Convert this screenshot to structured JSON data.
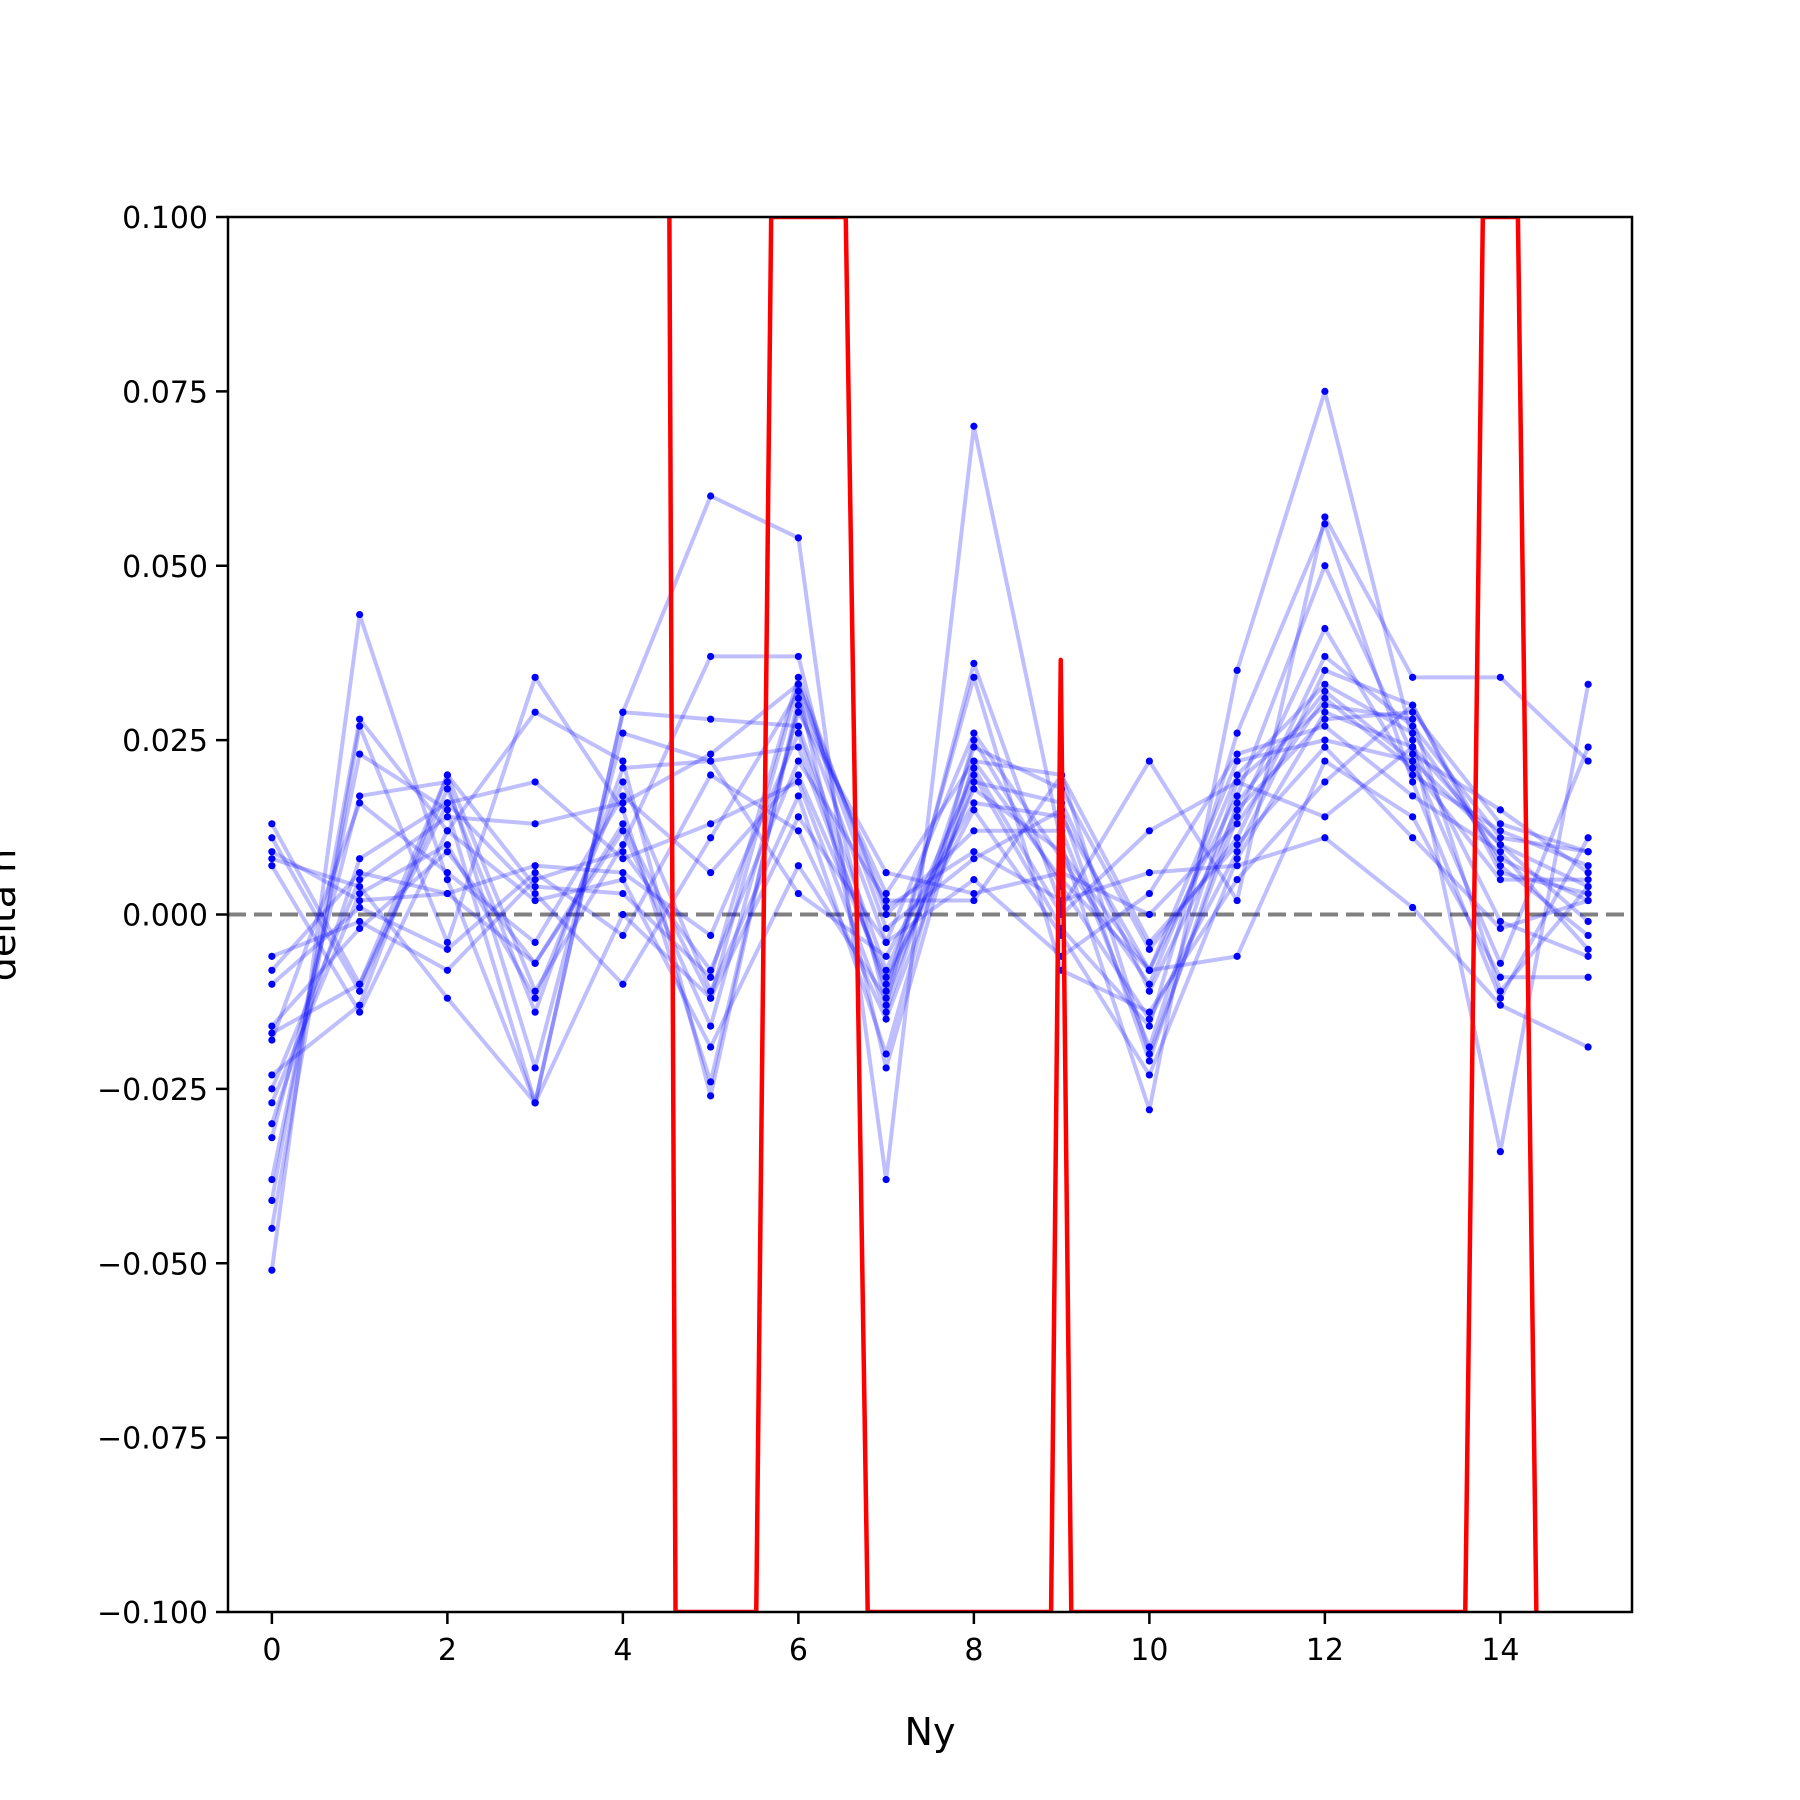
{
  "chart_data": {
    "type": "line",
    "xlabel": "Ny",
    "ylabel": "delta h",
    "xlim": [
      -0.5,
      15.5
    ],
    "ylim": [
      -0.1,
      0.1
    ],
    "xticks": [
      0,
      2,
      4,
      6,
      8,
      10,
      12,
      14
    ],
    "yticks": [
      -0.1,
      -0.075,
      -0.05,
      -0.025,
      0.0,
      0.025,
      0.05,
      0.075,
      0.1
    ],
    "xtick_labels": [
      "0",
      "2",
      "4",
      "6",
      "8",
      "10",
      "12",
      "14"
    ],
    "ytick_labels": [
      "−0.100",
      "−0.075",
      "−0.050",
      "−0.025",
      "0.000",
      "0.025",
      "0.050",
      "0.075",
      "0.100"
    ],
    "grid": false,
    "legend": "none",
    "reference_line": {
      "y": 0.0,
      "style": "dashed",
      "color": "#808080"
    },
    "colors": {
      "series": "#0000ff",
      "red_series": "#ff0000"
    },
    "x": [
      0,
      1,
      2,
      3,
      4,
      5,
      6,
      7,
      8,
      9,
      10,
      11,
      12,
      13,
      14,
      15
    ],
    "series": [
      {
        "values": [
          -0.051,
          0.043,
          0.005,
          -0.027,
          0.029,
          0.06,
          0.054,
          -0.038,
          0.07,
          0.01,
          -0.028,
          0.035,
          0.075,
          0.025,
          -0.034,
          0.033
        ]
      },
      {
        "values": [
          0.013,
          -0.01,
          0.02,
          -0.011,
          0.01,
          0.037,
          0.037,
          -0.013,
          0.036,
          0.001,
          0.022,
          0.002,
          0.057,
          0.034,
          0.034,
          0.022
        ]
      },
      {
        "values": [
          -0.045,
          0.027,
          -0.004,
          0.034,
          0.015,
          -0.024,
          0.03,
          -0.004,
          0.026,
          0.008,
          -0.01,
          0.02,
          0.033,
          0.026,
          0.008,
          0.002
        ]
      },
      {
        "values": [
          -0.041,
          0.028,
          0.012,
          0.029,
          0.022,
          -0.026,
          0.031,
          0.003,
          0.022,
          0.02,
          -0.02,
          0.014,
          0.041,
          0.02,
          0.012,
          0.007
        ]
      },
      {
        "values": [
          -0.038,
          0.023,
          0.015,
          -0.027,
          0.029,
          0.028,
          0.027,
          -0.008,
          0.02,
          -0.002,
          -0.016,
          0.026,
          0.056,
          0.019,
          -0.012,
          0.011
        ]
      },
      {
        "values": [
          -0.032,
          0.017,
          0.019,
          -0.022,
          0.026,
          0.022,
          0.024,
          -0.01,
          0.018,
          0.009,
          -0.008,
          0.017,
          0.05,
          0.023,
          0.015,
          0.006
        ]
      },
      {
        "values": [
          -0.03,
          0.008,
          0.016,
          0.019,
          0.008,
          0.013,
          0.019,
          -0.014,
          0.024,
          0.018,
          -0.005,
          0.011,
          0.037,
          0.027,
          0.011,
          0.009
        ]
      },
      {
        "values": [
          -0.027,
          0.003,
          0.01,
          -0.012,
          0.019,
          -0.011,
          0.017,
          -0.02,
          0.025,
          0.004,
          -0.015,
          0.009,
          0.035,
          0.03,
          0.007,
          -0.003
        ]
      },
      {
        "values": [
          -0.025,
          0.005,
          0.014,
          0.013,
          0.016,
          0.023,
          0.033,
          -0.002,
          0.008,
          0.015,
          -0.021,
          0.016,
          0.032,
          0.022,
          -0.007,
          0.024
        ]
      },
      {
        "values": [
          -0.023,
          -0.013,
          0.02,
          0.004,
          0.003,
          -0.009,
          0.034,
          0.0,
          0.012,
          0.012,
          -0.019,
          0.019,
          0.03,
          0.028,
          -0.011,
          0.004
        ]
      },
      {
        "values": [
          -0.018,
          0.016,
          0.006,
          -0.004,
          0.017,
          0.006,
          0.02,
          -0.009,
          0.015,
          -0.003,
          -0.023,
          0.008,
          0.029,
          0.024,
          0.01,
          -0.001
        ]
      },
      {
        "values": [
          -0.016,
          -0.002,
          0.009,
          -0.007,
          0.012,
          -0.016,
          0.029,
          0.006,
          0.003,
          0.006,
          0.0,
          0.013,
          0.031,
          0.021,
          0.005,
          0.005
        ]
      },
      {
        "values": [
          -0.01,
          0.001,
          -0.005,
          0.006,
          -0.003,
          0.02,
          0.012,
          -0.015,
          0.019,
          0.016,
          -0.011,
          0.015,
          0.028,
          0.029,
          0.013,
          0.009
        ]
      },
      {
        "values": [
          -0.008,
          0.006,
          0.003,
          -0.007,
          0.013,
          -0.012,
          0.014,
          -0.004,
          0.005,
          -0.006,
          0.003,
          0.023,
          0.027,
          0.017,
          0.009,
          -0.005
        ]
      },
      {
        "values": [
          -0.006,
          -0.001,
          -0.008,
          0.005,
          0.009,
          -0.008,
          0.022,
          0.002,
          0.002,
          0.02,
          -0.004,
          0.01,
          0.024,
          0.011,
          -0.002,
          0.002
        ]
      },
      {
        "values": [
          0.011,
          -0.011,
          0.018,
          -0.014,
          0.021,
          0.022,
          0.003,
          -0.006,
          0.016,
          0.014,
          -0.008,
          -0.006,
          0.022,
          0.014,
          -0.009,
          -0.009
        ]
      },
      {
        "values": [
          0.009,
          0.002,
          0.003,
          0.007,
          0.006,
          -0.003,
          0.026,
          -0.011,
          0.034,
          -0.008,
          -0.014,
          0.005,
          0.019,
          0.03,
          0.006,
          0.003
        ]
      },
      {
        "values": [
          0.007,
          -0.014,
          0.012,
          0.002,
          0.005,
          -0.019,
          0.007,
          -0.012,
          0.021,
          0.0,
          0.012,
          0.019,
          0.014,
          0.024,
          -0.001,
          -0.006
        ]
      },
      {
        "values": [
          0.008,
          0.004,
          -0.012,
          -0.027,
          0.0,
          -0.012,
          0.033,
          0.001,
          0.009,
          0.002,
          0.006,
          0.007,
          0.011,
          0.001,
          -0.013,
          -0.019
        ]
      },
      {
        "values": [
          -0.017,
          -0.01,
          0.016,
          0.003,
          -0.01,
          0.011,
          0.032,
          -0.022,
          0.022,
          0.005,
          -0.008,
          0.022,
          0.025,
          0.022,
          0.01,
          0.004
        ]
      }
    ],
    "red_series": {
      "x": [
        4.53,
        4.6,
        5.52,
        5.69,
        6.54,
        6.79,
        8.88,
        8.99,
        9.11,
        13.6,
        13.8,
        14.2,
        14.41
      ],
      "y": [
        0.1,
        -0.1,
        -0.1,
        0.1,
        0.1,
        -0.1,
        -0.1,
        0.0365,
        -0.1,
        -0.1,
        0.1,
        0.1,
        -0.1
      ]
    }
  }
}
